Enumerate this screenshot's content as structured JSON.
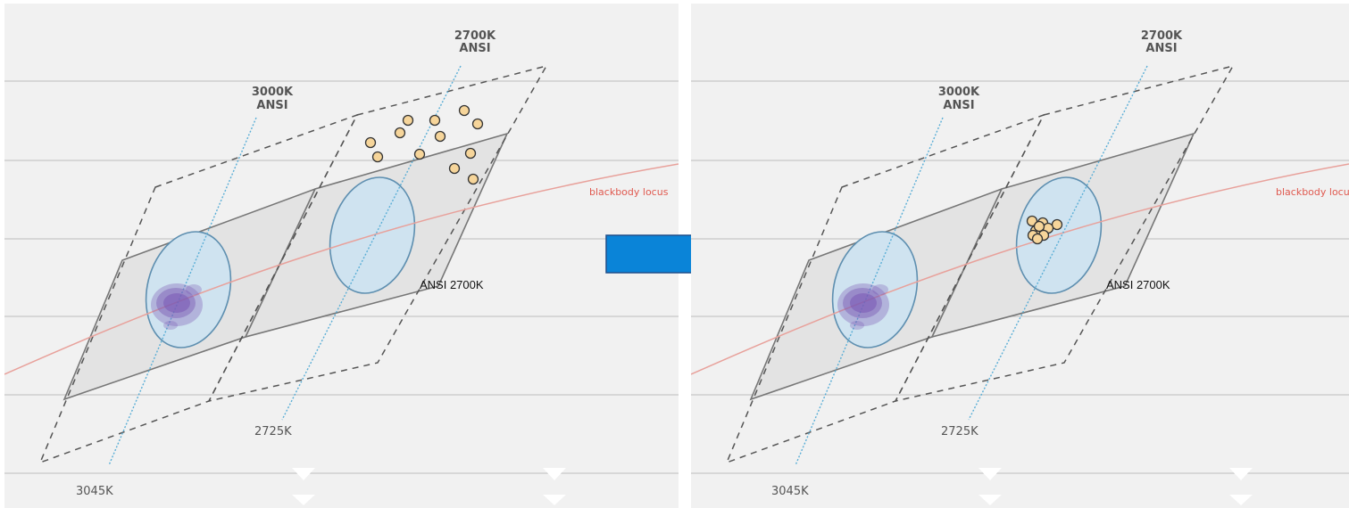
{
  "labels": {
    "cct_2700_line1": "2700K",
    "cct_2700_line2": "ANSI",
    "cct_3000_line1": "3000K",
    "cct_3000_line2": "ANSI",
    "blackbody_locus": "blackbody locus",
    "ansi_2700k": "ANSI 2700K",
    "target_2725k": "2725K",
    "target_3045k": "3045K"
  },
  "colors": {
    "panel_background": "#f1f1f1",
    "grid_line": "#c8c8c8",
    "quad_fill": "#e3e3e3",
    "quad_stroke": "#777777",
    "ellipse_fill": "#cfe3f0",
    "ellipse_stroke": "#5e8fb0",
    "dotted_cct_line": "#5aaed6",
    "blackbody_curve": "#e8a19b",
    "sample_marker_fill": "#f6d59a",
    "sample_marker_stroke": "#333333",
    "scatter_cloud": "#7a5ab4",
    "arrow_fill": "#0a84d8",
    "arrow_stroke": "#1f4f8a"
  },
  "icons": {
    "transition_arrow": "arrow-right-icon",
    "bottom_markers": "triangle-down-icon"
  },
  "panels": [
    {
      "state": "before",
      "markers": "scattered"
    },
    {
      "state": "after",
      "markers": "clustered"
    }
  ]
}
